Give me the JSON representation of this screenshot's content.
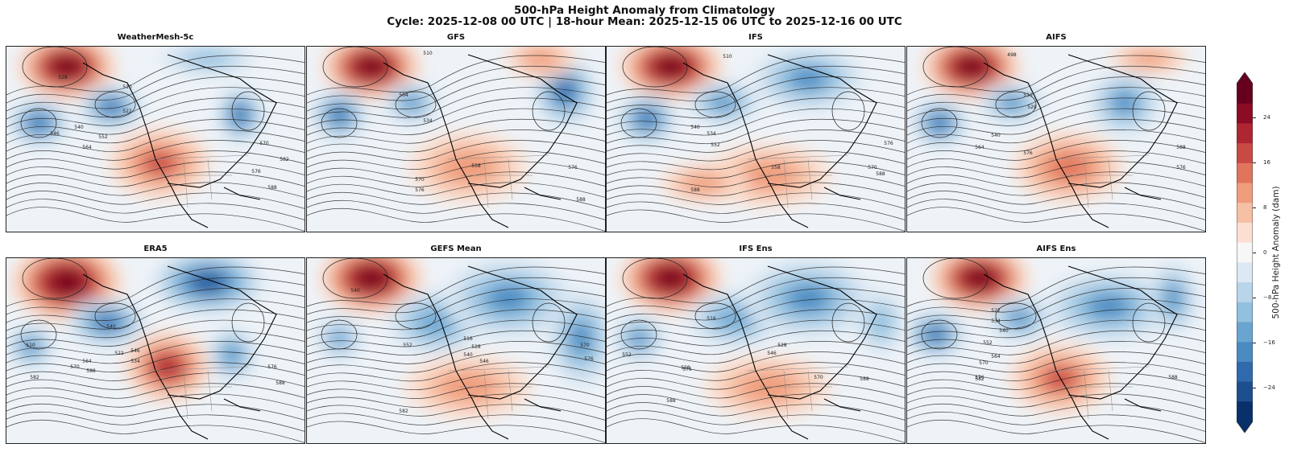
{
  "figure": {
    "title": "500-hPa Height Anomaly from Climatology",
    "subtitle": "Cycle: 2025-12-08 00 UTC | 18-hour Mean: 2025-12-15 06 UTC to 2025-12-16 00 UTC"
  },
  "panels": [
    {
      "title": "WeatherMesh-5c",
      "contour_labels": [
        "528",
        "510",
        "522",
        "540",
        "546",
        "552",
        "564",
        "570",
        "582",
        "588",
        "576"
      ]
    },
    {
      "title": "GFS",
      "contour_labels": [
        "510",
        "504",
        "534",
        "570",
        "576",
        "558",
        "588",
        "576"
      ]
    },
    {
      "title": "IFS",
      "contour_labels": [
        "510",
        "540",
        "534",
        "552",
        "558",
        "570",
        "588",
        "588",
        "576"
      ]
    },
    {
      "title": "AIFS",
      "contour_labels": [
        "498",
        "510",
        "528",
        "540",
        "564",
        "576",
        "588",
        "576"
      ]
    },
    {
      "title": "ERA5",
      "contour_labels": [
        "510",
        "540",
        "522",
        "534",
        "546",
        "564",
        "570",
        "582",
        "588",
        "576",
        "588"
      ]
    },
    {
      "title": "GEFS Mean",
      "contour_labels": [
        "540",
        "516",
        "528",
        "540",
        "552",
        "546",
        "576",
        "570",
        "582"
      ]
    },
    {
      "title": "IFS Ens",
      "contour_labels": [
        "552",
        "516",
        "528",
        "546",
        "558",
        "576",
        "570",
        "588",
        "588"
      ]
    },
    {
      "title": "AIFS Ens",
      "contour_labels": [
        "522",
        "534",
        "540",
        "552",
        "564",
        "570",
        "576",
        "582",
        "588"
      ]
    }
  ],
  "colorbar": {
    "label": "500-hPa Height Anomaly (dam)",
    "ticks": [
      "24",
      "16",
      "8",
      "0",
      "−8",
      "−16",
      "−24"
    ],
    "tick_values": [
      24,
      16,
      8,
      0,
      -8,
      -16,
      -24
    ],
    "range": [
      -30,
      30
    ],
    "colors": [
      "#08306b",
      "#1d4f8e",
      "#2f6aad",
      "#4a8bc2",
      "#6aa5d1",
      "#92c0df",
      "#b9d5ea",
      "#dce8f3",
      "#f7f7f7",
      "#fbe0d1",
      "#f6c0a4",
      "#ef9c7c",
      "#e0745c",
      "#c94944",
      "#ad2631",
      "#8b0c24",
      "#67001f"
    ],
    "extend": "both"
  }
}
